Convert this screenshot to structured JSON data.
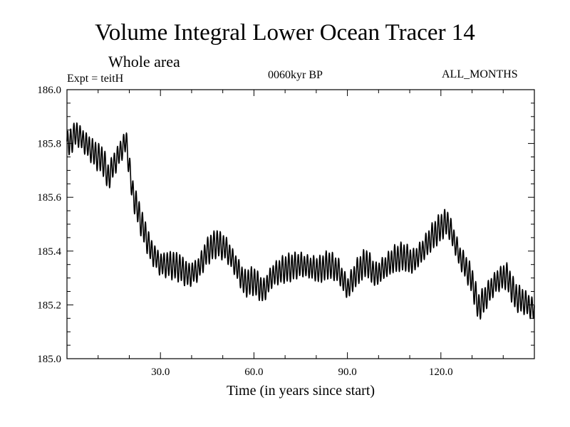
{
  "chart_data": {
    "type": "line",
    "title": "Volume Integral Lower Ocean Tracer 14",
    "subtitle": "Whole area",
    "annotations": {
      "experiment": "Expt = teitH",
      "period": "0060kyr BP",
      "months": "ALL_MONTHS"
    },
    "xlabel": "Time (in years since start)",
    "ylabel": "",
    "xlim": [
      0,
      150
    ],
    "ylim": [
      185.0,
      186.0
    ],
    "x_ticks": [
      30.0,
      60.0,
      90.0,
      120.0
    ],
    "x_tick_labels": [
      "30.0",
      "60.0",
      "90.0",
      "120.0"
    ],
    "y_ticks": [
      185.0,
      185.2,
      185.4,
      185.6,
      185.8,
      186.0
    ],
    "y_tick_labels": [
      "185.0",
      "185.2",
      "185.4",
      "185.6",
      "185.8",
      "186.0"
    ],
    "grid": false,
    "series": [
      {
        "name": "Lower Ocean Tracer 14",
        "seasonal_amplitude": 0.045,
        "x": [
          0,
          3,
          6,
          9,
          12,
          13,
          15,
          18,
          19,
          21,
          24,
          27,
          30,
          33,
          36,
          39,
          42,
          45,
          48,
          51,
          54,
          57,
          60,
          63,
          66,
          69,
          72,
          75,
          78,
          81,
          84,
          87,
          90,
          93,
          96,
          99,
          102,
          105,
          108,
          111,
          114,
          117,
          120,
          122,
          124,
          126,
          128,
          130,
          132,
          134,
          136,
          138,
          141,
          144,
          147,
          150
        ],
        "values": [
          185.79,
          185.84,
          185.8,
          185.76,
          185.73,
          185.67,
          185.72,
          185.79,
          185.81,
          185.62,
          185.5,
          185.4,
          185.35,
          185.35,
          185.34,
          185.31,
          185.33,
          185.4,
          185.43,
          185.41,
          185.35,
          185.28,
          185.29,
          185.25,
          185.31,
          185.33,
          185.34,
          185.35,
          185.34,
          185.33,
          185.35,
          185.33,
          185.26,
          185.32,
          185.36,
          185.31,
          185.34,
          185.37,
          185.38,
          185.36,
          185.4,
          185.45,
          185.49,
          185.51,
          185.45,
          185.38,
          185.34,
          185.29,
          185.19,
          185.22,
          185.26,
          185.29,
          185.31,
          185.23,
          185.21,
          185.18
        ]
      }
    ]
  }
}
